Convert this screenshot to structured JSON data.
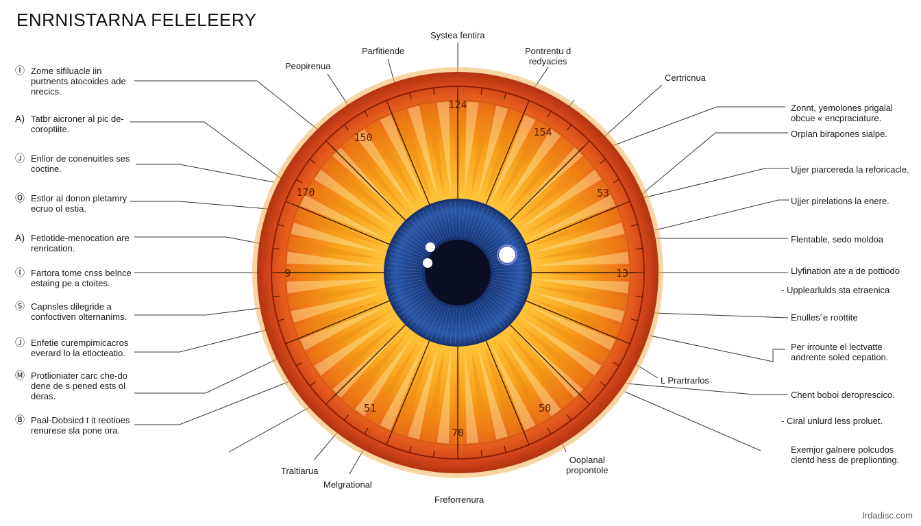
{
  "title": "ENRNISTARNA FELELEERY",
  "watermark": "Irdadisc.com",
  "colors": {
    "iris_outer": "#e2561e",
    "iris_mid": "#f39a1a",
    "iris_inner": "#ffcf45",
    "pupil_ring": "#1c3f86",
    "pupil": "#0a0f25",
    "rim": "#b2330f"
  },
  "ring_numbers": [
    "124",
    "154",
    "53",
    "13",
    "50",
    "70",
    "51",
    "9",
    "170",
    "150"
  ],
  "top_labels": [
    {
      "text": "Peopirenua"
    },
    {
      "text": "Parfitiende"
    },
    {
      "text": "Systea fentira"
    },
    {
      "l1": "Pontrentu d",
      "l2": "redyacies"
    },
    {
      "text": "Certricnua"
    }
  ],
  "bottom_labels": [
    {
      "text": "Traltiarua"
    },
    {
      "text": "Melgrational"
    },
    {
      "text": "Freforrenura"
    },
    {
      "l1": "Ooplanal",
      "l2": "propontole"
    }
  ],
  "left_labels": [
    {
      "marker": "Ⓘ",
      "l1": "Zome sifiluacle iin",
      "l2": "purtnents atocoides ade",
      "l3": "nrecics."
    },
    {
      "marker": "A)",
      "l1": "Tatbr aicroner al pic de-",
      "l2": "coroptiite."
    },
    {
      "marker": "Ⓙ",
      "l1": "Enllor de conenuitles ses",
      "l2": "coctine."
    },
    {
      "marker": "Ⓞ",
      "l1": "Estlor al donon pletamry",
      "l2": "ecruo ol estia."
    },
    {
      "marker": "A)",
      "l1": "Fetlotide-menocation are",
      "l2": "renrication."
    },
    {
      "marker": "Ⓘ",
      "l1": "Fartora tome cnss belnce",
      "l2": "estaing pe a ctoites."
    },
    {
      "marker": "Ⓢ",
      "l1": "Capnsles dilegride a",
      "l2": "confoctiven olternanims."
    },
    {
      "marker": "Ⓙ",
      "l1": "Enfetie curempimicacros",
      "l2": "everard lo la etlocteatio."
    },
    {
      "marker": "Ⓜ",
      "l1": "Protlioniater carc che-do",
      "l2": "dene de s pened ests ol",
      "l3": "deras."
    },
    {
      "marker": "Ⓑ",
      "l1": "Paal-Dobsicd t it reotioes",
      "l2": "renurese sla pone ora."
    }
  ],
  "right_labels": [
    {
      "l1": "Zonnt, yemolones prigalal",
      "l2": "obcue « encpraciature."
    },
    {
      "l1": "Orplan birapones sialpe."
    },
    {
      "l1": "Ujjer piarcereda la reforicacle."
    },
    {
      "l1": "Ujjer pirelations la enere."
    },
    {
      "l1": "Flentable, sedo moldoa"
    },
    {
      "l1": "Llyfination ate a de pottiodo"
    },
    {
      "l1": "- Upplearlulds sta etraenica"
    },
    {
      "l1": "Enulles´e roottite"
    },
    {
      "l1": "Per irrounte el lectvatte",
      "l2": "andrente soled cepation."
    },
    {
      "l1": "L Prartrarlos"
    },
    {
      "l1": "Chent boboi deroprescico."
    },
    {
      "l1": "- Ciral unlurd less proluet."
    },
    {
      "l1": "Exemjor galnere polcudos",
      "l2": "clentd hess de preplionting."
    }
  ]
}
